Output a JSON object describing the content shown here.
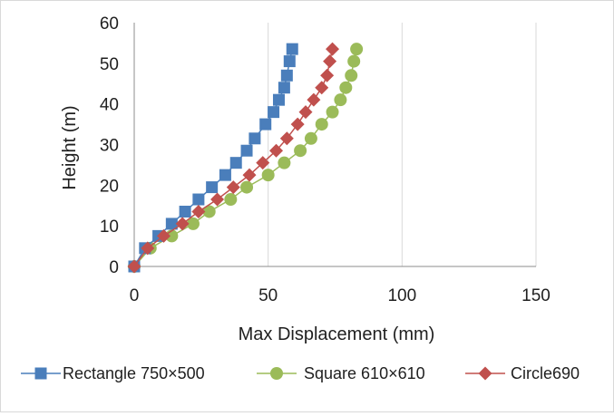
{
  "chart_data": {
    "type": "scatter",
    "title": "",
    "xlabel": "Max Displacement (mm)",
    "ylabel": "Height (m)",
    "xlim": [
      0,
      150
    ],
    "ylim": [
      0,
      60
    ],
    "xticks": [
      0,
      50,
      100,
      150
    ],
    "yticks": [
      0,
      10,
      20,
      30,
      40,
      50,
      60
    ],
    "grid": "vertical gridlines",
    "legend_position": "bottom",
    "series": [
      {
        "name": "Rectangle 750×500",
        "color": "#4a7ebb",
        "marker": "square",
        "x": [
          0,
          4,
          9,
          14,
          19,
          24,
          29,
          34,
          38,
          42,
          45,
          49,
          52,
          54,
          56,
          57,
          58,
          59
        ],
        "y": [
          0,
          4.5,
          7.5,
          10.5,
          13.5,
          16.5,
          19.5,
          22.5,
          25.5,
          28.5,
          31.5,
          35,
          38,
          41,
          44,
          47,
          50.5,
          53.5
        ]
      },
      {
        "name": "Square 610×610",
        "color": "#9bbb59",
        "marker": "circle",
        "x": [
          0,
          6,
          14,
          22,
          28,
          36,
          42,
          50,
          56,
          62,
          66,
          70,
          74,
          77,
          79,
          81,
          82,
          83
        ],
        "y": [
          0,
          4.5,
          7.5,
          10.5,
          13.5,
          16.5,
          19.5,
          22.5,
          25.5,
          28.5,
          31.5,
          35,
          38,
          41,
          44,
          47,
          50.5,
          53.5
        ]
      },
      {
        "name": "Circle690",
        "color": "#c0504d",
        "marker": "diamond",
        "x": [
          0,
          5,
          11,
          18,
          24,
          31,
          37,
          43,
          48,
          53,
          57,
          61,
          64,
          67,
          70,
          72,
          73,
          74
        ],
        "y": [
          0,
          4.5,
          7.5,
          10.5,
          13.5,
          16.5,
          19.5,
          22.5,
          25.5,
          28.5,
          31.5,
          35,
          38,
          41,
          44,
          47,
          50.5,
          53.5
        ]
      }
    ]
  }
}
